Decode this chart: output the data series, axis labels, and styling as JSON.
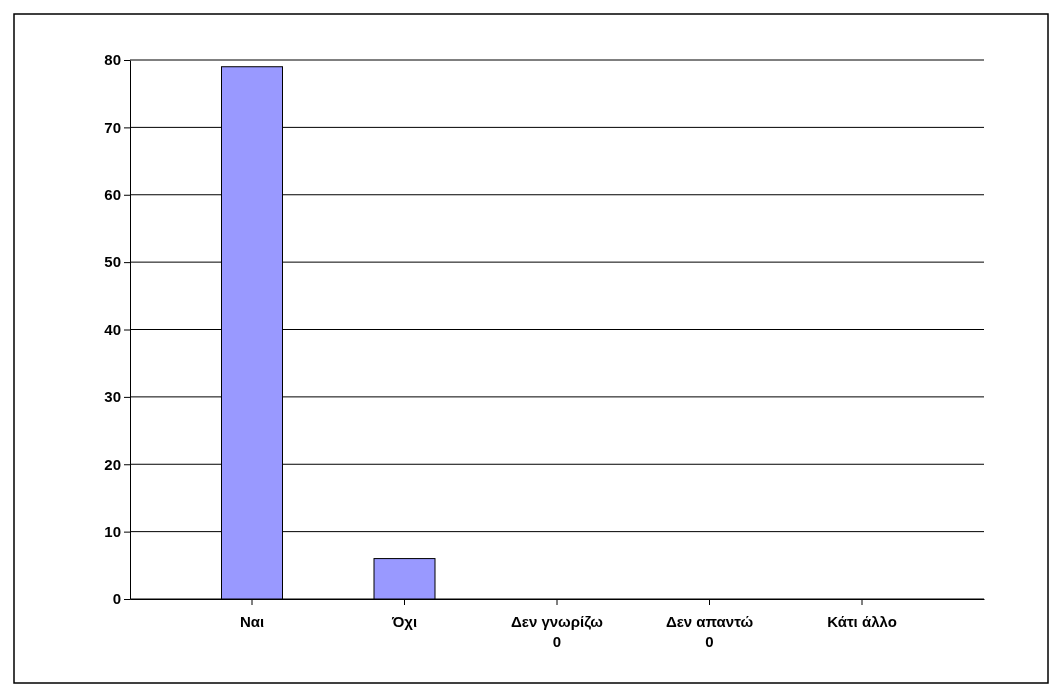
{
  "chart_data": {
    "type": "bar",
    "categories": [
      "Ναι",
      "Όχι",
      "Δεν γνωρίζω\n0",
      "Δεν απαντώ\n0",
      "Κάτι άλλο"
    ],
    "values": [
      79,
      6,
      0,
      0,
      0
    ],
    "color": "#9999ff",
    "ylim": [
      0,
      80
    ],
    "yticks": [
      0,
      10,
      20,
      30,
      40,
      50,
      60,
      70,
      80
    ],
    "grid": "y"
  }
}
